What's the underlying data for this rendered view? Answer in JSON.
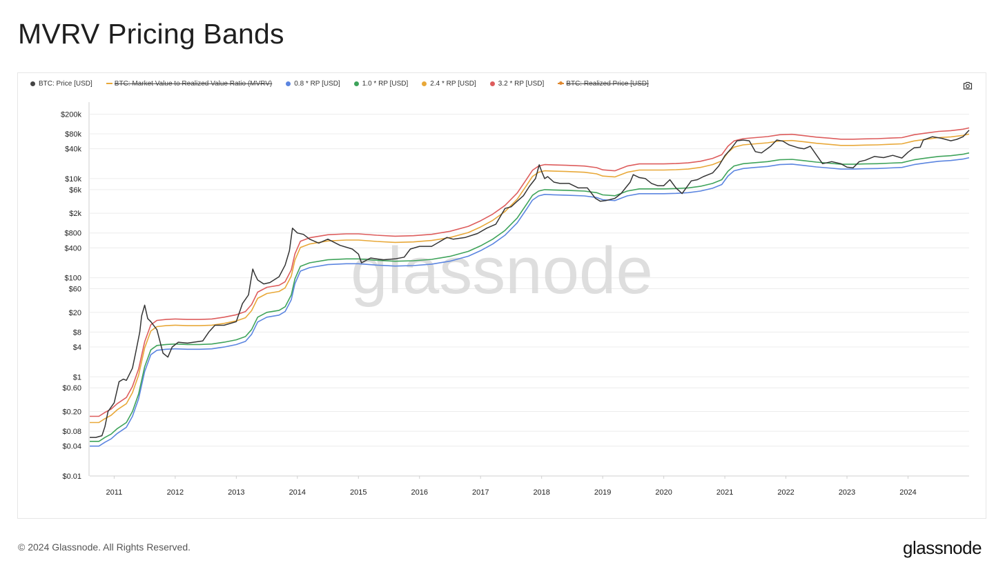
{
  "title": "MVRV Pricing Bands",
  "footer": {
    "copyright": "© 2024 Glassnode. All Rights Reserved.",
    "brand": "glassnode"
  },
  "watermark": "glassnode",
  "camera_icon": "camera-icon",
  "colors": {
    "price": "#333333",
    "mvrv": "#e8a838",
    "rp08": "#5b85e0",
    "rp10": "#3ea35a",
    "rp24": "#e8a838",
    "rp32": "#dd5c5c",
    "realized": "#e0882e",
    "grid": "#ececec",
    "watermark": "#d9d9d9"
  },
  "legend": [
    {
      "label": "BTC: Price [USD]",
      "color": "#444444",
      "style": "dot",
      "hidden": false
    },
    {
      "label": "BTC: Market Value to Realized Value Ratio (MVRV)",
      "color": "#e8a838",
      "style": "line",
      "hidden": true
    },
    {
      "label": "0.8 * RP [USD]",
      "color": "#5b85e0",
      "style": "dot",
      "hidden": false
    },
    {
      "label": "1.0 * RP [USD]",
      "color": "#3ea35a",
      "style": "dot",
      "hidden": false
    },
    {
      "label": "2.4 * RP [USD]",
      "color": "#e8a838",
      "style": "dot",
      "hidden": false
    },
    {
      "label": "3.2 * RP [USD]",
      "color": "#dd5c5c",
      "style": "dot",
      "hidden": false
    },
    {
      "label": "BTC: Realized Price [USD]",
      "color": "#e0882e",
      "style": "line",
      "hidden": true
    }
  ],
  "chart_data": {
    "type": "line",
    "title": "MVRV Pricing Bands",
    "yscale": "log",
    "ylim": [
      0.01,
      350000
    ],
    "xlim": [
      2010.6,
      2025.0
    ],
    "grid": true,
    "legend_position": "top",
    "y_ticks": [
      {
        "label": "$200k",
        "value": 200000
      },
      {
        "label": "$80k",
        "value": 80000
      },
      {
        "label": "$40k",
        "value": 40000
      },
      {
        "label": "$10k",
        "value": 10000
      },
      {
        "label": "$6k",
        "value": 6000
      },
      {
        "label": "$2k",
        "value": 2000
      },
      {
        "label": "$800",
        "value": 800
      },
      {
        "label": "$400",
        "value": 400
      },
      {
        "label": "$100",
        "value": 100
      },
      {
        "label": "$60",
        "value": 60
      },
      {
        "label": "$20",
        "value": 20
      },
      {
        "label": "$8",
        "value": 8
      },
      {
        "label": "$4",
        "value": 4
      },
      {
        "label": "$1",
        "value": 1
      },
      {
        "label": "$0.60",
        "value": 0.6
      },
      {
        "label": "$0.20",
        "value": 0.2
      },
      {
        "label": "$0.08",
        "value": 0.08
      },
      {
        "label": "$0.04",
        "value": 0.04
      },
      {
        "label": "$0.01",
        "value": 0.01
      }
    ],
    "x_ticks": [
      "2011",
      "2012",
      "2013",
      "2014",
      "2015",
      "2016",
      "2017",
      "2018",
      "2019",
      "2020",
      "2021",
      "2022",
      "2023",
      "2024"
    ],
    "realized_price": {
      "x": [
        2010.6,
        2010.75,
        2010.85,
        2010.95,
        2011.05,
        2011.2,
        2011.3,
        2011.4,
        2011.5,
        2011.6,
        2011.7,
        2011.85,
        2012.0,
        2012.2,
        2012.4,
        2012.6,
        2012.8,
        2013.0,
        2013.15,
        2013.25,
        2013.35,
        2013.5,
        2013.7,
        2013.8,
        2013.9,
        2013.96,
        2014.05,
        2014.2,
        2014.5,
        2014.8,
        2015.0,
        2015.3,
        2015.6,
        2015.9,
        2016.2,
        2016.5,
        2016.8,
        2017.0,
        2017.2,
        2017.4,
        2017.6,
        2017.75,
        2017.85,
        2017.95,
        2018.05,
        2018.2,
        2018.4,
        2018.7,
        2018.9,
        2019.0,
        2019.2,
        2019.4,
        2019.6,
        2019.8,
        2020.0,
        2020.2,
        2020.4,
        2020.6,
        2020.8,
        2020.95,
        2021.05,
        2021.15,
        2021.3,
        2021.5,
        2021.7,
        2021.9,
        2022.1,
        2022.3,
        2022.5,
        2022.7,
        2022.9,
        2023.1,
        2023.3,
        2023.5,
        2023.7,
        2023.9,
        2024.1,
        2024.3,
        2024.5,
        2024.7,
        2024.9,
        2025.0
      ],
      "values": [
        0.05,
        0.05,
        0.06,
        0.07,
        0.09,
        0.12,
        0.2,
        0.45,
        1.6,
        3.5,
        4.3,
        4.5,
        4.6,
        4.5,
        4.5,
        4.6,
        5.0,
        5.6,
        6.5,
        9,
        16,
        20,
        22,
        26,
        45,
        95,
        170,
        200,
        230,
        240,
        240,
        225,
        215,
        220,
        235,
        270,
        340,
        440,
        600,
        900,
        1600,
        3000,
        4600,
        5600,
        6000,
        5900,
        5800,
        5600,
        5200,
        4700,
        4500,
        5600,
        6200,
        6200,
        6200,
        6300,
        6500,
        7000,
        8000,
        9500,
        14000,
        18000,
        20000,
        21000,
        22000,
        24000,
        24500,
        23000,
        21500,
        20500,
        19500,
        19500,
        19800,
        20000,
        20500,
        21000,
        24000,
        26000,
        28000,
        29000,
        31000,
        33000
      ]
    },
    "series": [
      {
        "name": "0.8 * RP [USD]",
        "multiplier": 0.8
      },
      {
        "name": "1.0 * RP [USD]",
        "multiplier": 1.0
      },
      {
        "name": "2.4 * RP [USD]",
        "multiplier": 2.4
      },
      {
        "name": "3.2 * RP [USD]",
        "multiplier": 3.2
      }
    ],
    "price": {
      "name": "BTC: Price [USD]",
      "x": [
        2010.6,
        2010.7,
        2010.8,
        2010.85,
        2010.9,
        2011.0,
        2011.08,
        2011.15,
        2011.2,
        2011.3,
        2011.35,
        2011.42,
        2011.45,
        2011.5,
        2011.55,
        2011.6,
        2011.7,
        2011.8,
        2011.88,
        2011.95,
        2012.05,
        2012.2,
        2012.3,
        2012.45,
        2012.55,
        2012.65,
        2012.8,
        2013.0,
        2013.1,
        2013.2,
        2013.27,
        2013.3,
        2013.35,
        2013.45,
        2013.55,
        2013.7,
        2013.8,
        2013.87,
        2013.92,
        2014.0,
        2014.1,
        2014.2,
        2014.35,
        2014.5,
        2014.7,
        2014.9,
        2015.0,
        2015.05,
        2015.2,
        2015.4,
        2015.6,
        2015.75,
        2015.85,
        2016.0,
        2016.2,
        2016.45,
        2016.55,
        2016.75,
        2016.95,
        2017.1,
        2017.25,
        2017.4,
        2017.5,
        2017.6,
        2017.7,
        2017.8,
        2017.9,
        2017.96,
        2018.0,
        2018.05,
        2018.1,
        2018.2,
        2018.3,
        2018.45,
        2018.6,
        2018.75,
        2018.88,
        2018.96,
        2019.05,
        2019.2,
        2019.3,
        2019.45,
        2019.5,
        2019.6,
        2019.7,
        2019.8,
        2019.9,
        2020.0,
        2020.1,
        2020.2,
        2020.3,
        2020.45,
        2020.55,
        2020.65,
        2020.8,
        2020.9,
        2021.0,
        2021.1,
        2021.2,
        2021.3,
        2021.4,
        2021.5,
        2021.6,
        2021.75,
        2021.85,
        2021.95,
        2022.05,
        2022.2,
        2022.3,
        2022.4,
        2022.5,
        2022.6,
        2022.75,
        2022.9,
        2023.0,
        2023.1,
        2023.2,
        2023.3,
        2023.45,
        2023.6,
        2023.75,
        2023.9,
        2024.0,
        2024.1,
        2024.2,
        2024.25,
        2024.4,
        2024.55,
        2024.7,
        2024.8,
        2024.9,
        2025.0
      ],
      "values": [
        0.06,
        0.06,
        0.065,
        0.1,
        0.2,
        0.3,
        0.8,
        0.9,
        0.85,
        1.5,
        3,
        8,
        17,
        28,
        15,
        13,
        9,
        3,
        2.5,
        4,
        5,
        4.8,
        5,
        5.3,
        8,
        11,
        11,
        13,
        30,
        45,
        150,
        120,
        90,
        75,
        80,
        105,
        180,
        350,
        1000,
        800,
        750,
        600,
        500,
        600,
        450,
        380,
        300,
        200,
        250,
        230,
        240,
        260,
        380,
        430,
        430,
        650,
        600,
        650,
        780,
        1000,
        1200,
        2500,
        2700,
        3500,
        4500,
        7000,
        10000,
        19000,
        14000,
        10000,
        11000,
        8500,
        8000,
        8000,
        6500,
        6500,
        4000,
        3500,
        3600,
        4000,
        5000,
        8500,
        12000,
        10500,
        10000,
        8000,
        7200,
        7200,
        9500,
        6500,
        5000,
        9000,
        9500,
        11000,
        13000,
        18000,
        29000,
        40000,
        58000,
        60000,
        58000,
        35000,
        33000,
        45000,
        60000,
        57000,
        48000,
        42000,
        40000,
        45000,
        30000,
        20000,
        22000,
        20000,
        17000,
        16500,
        22000,
        23500,
        28000,
        26500,
        29500,
        26000,
        34000,
        42000,
        43000,
        60000,
        70000,
        65000,
        58000,
        62000,
        70000,
        95000
      ]
    }
  }
}
